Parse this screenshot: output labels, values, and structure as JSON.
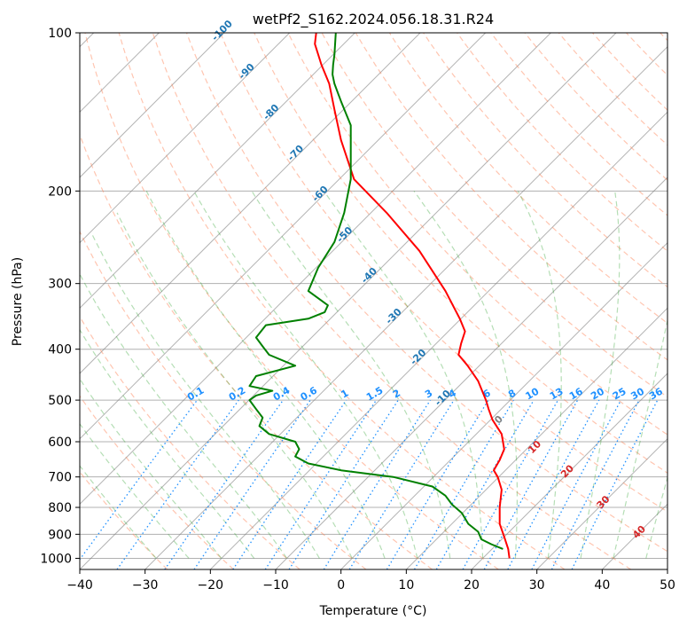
{
  "chart_data": {
    "type": "line",
    "title": "wetPf2_S162.2024.056.18.31.R24",
    "xlabel": "Temperature (°C)",
    "ylabel": "Pressure (hPa)",
    "xlim": [
      -40,
      50
    ],
    "ylim": [
      1050,
      100
    ],
    "y_scale": "log",
    "x_ticks": [
      -40,
      -30,
      -20,
      -10,
      0,
      10,
      20,
      30,
      40,
      50
    ],
    "x_tick_labels": [
      "−40",
      "−30",
      "−20",
      "−10",
      "0",
      "10",
      "20",
      "30",
      "40",
      "50"
    ],
    "y_ticks": [
      1000,
      900,
      800,
      700,
      600,
      500,
      400,
      300,
      200,
      100
    ],
    "y_tick_labels": [
      "1000",
      "900",
      "800",
      "700",
      "600",
      "500",
      "400",
      "300",
      "200",
      "100"
    ],
    "grid": true,
    "series": [
      {
        "color": "#ff0000",
        "x": [
          25.8,
          25.6,
          25.0,
          24.3,
          24.3,
          24.6,
          24.0,
          23.4,
          24.3,
          25.0,
          24.6,
          23.2,
          22.6,
          22.2,
          21.0,
          19.4,
          18.0,
          18.4,
          19.0,
          18.2,
          16.0,
          12.0,
          7.0,
          2.0,
          0.0,
          -1.0,
          -1.8,
          -3.0,
          -4.0,
          -3.8
        ],
        "y": [
          1000,
          960,
          910,
          860,
          800,
          740,
          700,
          680,
          650,
          620,
          580,
          545,
          520,
          500,
          460,
          430,
          410,
          390,
          370,
          350,
          310,
          260,
          220,
          190,
          160,
          140,
          125,
          115,
          105,
          100
        ]
      },
      {
        "color": "#008000",
        "x": [
          24.8,
          23.0,
          21.5,
          21.0,
          19.5,
          18.5,
          17.0,
          16.0,
          14.0,
          8.0,
          0.0,
          -5.0,
          -7.0,
          -6.4,
          -7.0,
          -11.0,
          -12.5,
          -12.0,
          -13.0,
          -14.0,
          -13.0,
          -10.5,
          -14.0,
          -13.0,
          -7.0,
          -11.0,
          -12.0,
          -13.0,
          -11.5,
          -5.0,
          -2.5,
          -2.0,
          -5.0,
          -3.5,
          -1.0,
          0.5,
          1.5,
          1.5,
          1.5,
          0.0,
          -1.0,
          -1.3,
          -1.2,
          -1.0,
          -0.8
        ],
        "y": [
          960,
          940,
          920,
          890,
          860,
          820,
          790,
          760,
          730,
          700,
          680,
          660,
          640,
          620,
          600,
          580,
          560,
          540,
          520,
          500,
          490,
          480,
          470,
          450,
          430,
          410,
          395,
          380,
          360,
          350,
          340,
          330,
          310,
          280,
          250,
          220,
          190,
          170,
          150,
          135,
          125,
          120,
          115,
          110,
          100
        ]
      }
    ],
    "background": {
      "isotherm_color": "#808080",
      "dry_adiabat_color": "#ff7f50",
      "moist_adiabat_color": "#2ca02c",
      "mixing_ratio_color": "#1e90ff",
      "moist_label_color": "#1f77b4",
      "dry_label_color": "#d62728",
      "dry_adiabat_zero_label_color": "#808080",
      "isotherm_labels": [
        "-100",
        "-90",
        "-80",
        "-70",
        "-60",
        "-50",
        "-40",
        "-30",
        "-20",
        "-10",
        "0",
        "10",
        "20",
        "30",
        "40"
      ],
      "mixing_ratio_labels": [
        "0.1",
        "0.2",
        "0.4",
        "0.6",
        "1",
        "1.5",
        "2",
        "3",
        "4",
        "6",
        "8",
        "10",
        "13",
        "16",
        "20",
        "25",
        "30",
        "36"
      ]
    }
  }
}
